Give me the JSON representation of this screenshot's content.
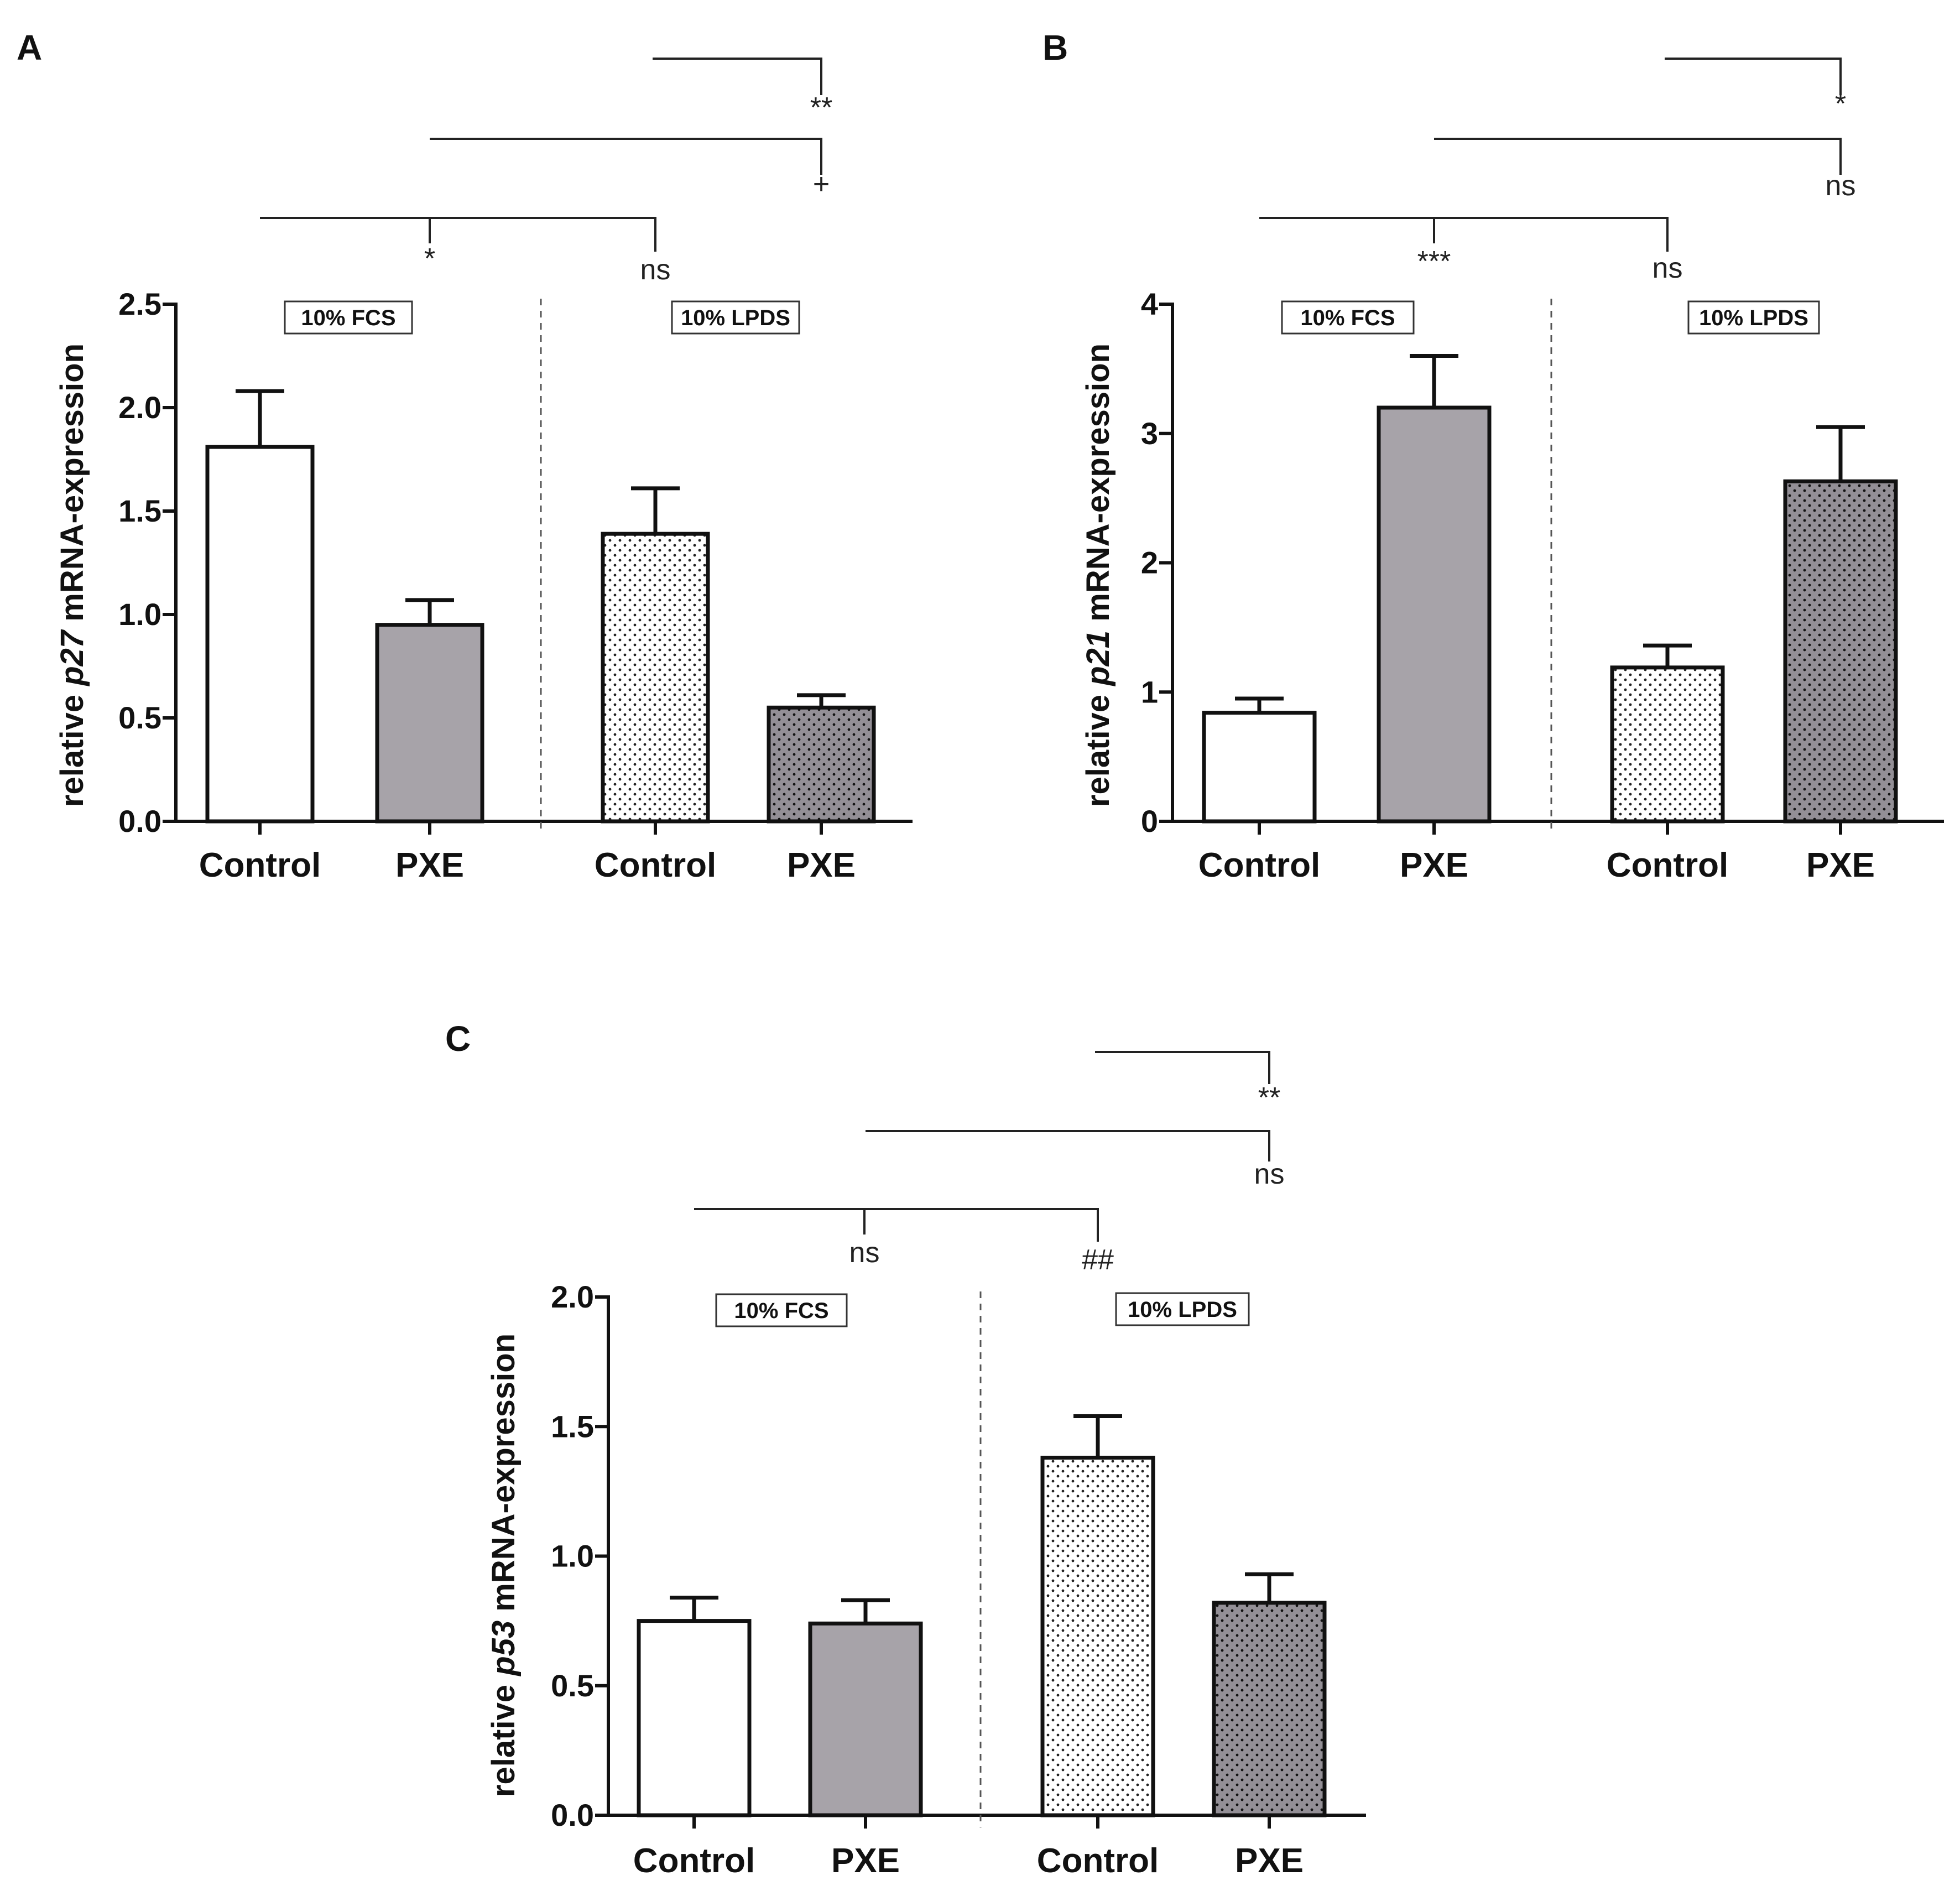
{
  "panels": [
    {
      "letter": "A",
      "chart_data": {
        "type": "bar",
        "ylabel_prefix": "relative ",
        "ylabel_gene": "p27",
        "ylabel_suffix": " mRNA-expression",
        "ylim": [
          0,
          2.5
        ],
        "yticks": [
          0,
          0.5,
          1.0,
          1.5,
          2.0,
          2.5
        ],
        "ytick_labels": [
          "0.0",
          "0.5",
          "1.0",
          "1.5",
          "2.0",
          "2.5"
        ],
        "categories": [
          "Control",
          "PXE",
          "Control",
          "PXE"
        ],
        "values": [
          1.81,
          0.95,
          1.39,
          0.55
        ],
        "errors": [
          0.27,
          0.12,
          0.22,
          0.06
        ],
        "fills": [
          "white",
          "gray",
          "dots-light",
          "dots-dark"
        ],
        "groups": [
          "10% FCS",
          "10% LPDS"
        ],
        "brackets": [
          {
            "from": 2,
            "to": 3,
            "level": 3,
            "label": "**"
          },
          {
            "from": 1,
            "to": 3,
            "level": 2,
            "label": "+"
          },
          {
            "from": 0,
            "to": 2,
            "level": 1,
            "labels": [
              {
                "at": 1,
                "text": "*"
              },
              {
                "at": 2,
                "text": "ns"
              }
            ]
          }
        ]
      }
    },
    {
      "letter": "B",
      "chart_data": {
        "type": "bar",
        "ylabel_prefix": "relative ",
        "ylabel_gene": "p21",
        "ylabel_suffix": " mRNA-expression",
        "ylim": [
          0,
          4
        ],
        "yticks": [
          0,
          1,
          2,
          3,
          4
        ],
        "ytick_labels": [
          "0",
          "1",
          "2",
          "3",
          "4"
        ],
        "categories": [
          "Control",
          "PXE",
          "Control",
          "PXE"
        ],
        "values": [
          0.84,
          3.2,
          1.19,
          2.63
        ],
        "errors": [
          0.11,
          0.4,
          0.17,
          0.42
        ],
        "fills": [
          "white",
          "gray",
          "dots-light",
          "dots-dark"
        ],
        "groups": [
          "10% FCS",
          "10% LPDS"
        ],
        "brackets": [
          {
            "from": 2,
            "to": 3,
            "level": 3,
            "label": "*"
          },
          {
            "from": 1,
            "to": 3,
            "level": 2,
            "label": "ns"
          },
          {
            "from": 0,
            "to": 2,
            "level": 1,
            "labels": [
              {
                "at": 1,
                "text": "***"
              },
              {
                "at": 2,
                "text": "ns"
              }
            ]
          }
        ]
      }
    },
    {
      "letter": "C",
      "chart_data": {
        "type": "bar",
        "ylabel_prefix": "relative ",
        "ylabel_gene": "p53",
        "ylabel_suffix": " mRNA-expression",
        "ylim": [
          0,
          2.0
        ],
        "yticks": [
          0,
          0.5,
          1.0,
          1.5,
          2.0
        ],
        "ytick_labels": [
          "0.0",
          "0.5",
          "1.0",
          "1.5",
          "2.0"
        ],
        "categories": [
          "Control",
          "PXE",
          "Control",
          "PXE"
        ],
        "values": [
          0.75,
          0.74,
          1.38,
          0.82
        ],
        "errors": [
          0.09,
          0.09,
          0.16,
          0.11
        ],
        "fills": [
          "white",
          "gray",
          "dots-light",
          "dots-dark"
        ],
        "groups": [
          "10% FCS",
          "10% LPDS"
        ],
        "brackets": [
          {
            "from": 2,
            "to": 3,
            "level": 3,
            "label": "**"
          },
          {
            "from": 1,
            "to": 3,
            "level": 2,
            "label": "ns"
          },
          {
            "from": 0,
            "to": 2,
            "level": 1,
            "labels": [
              {
                "at": 1,
                "text": "ns"
              },
              {
                "at": 2,
                "text": "##"
              }
            ]
          }
        ]
      }
    }
  ],
  "colors": {
    "bar_gray": "#a7a3a9",
    "bar_dark": "#938f96",
    "bar_light": "#ffffff",
    "ink": "#111111"
  }
}
